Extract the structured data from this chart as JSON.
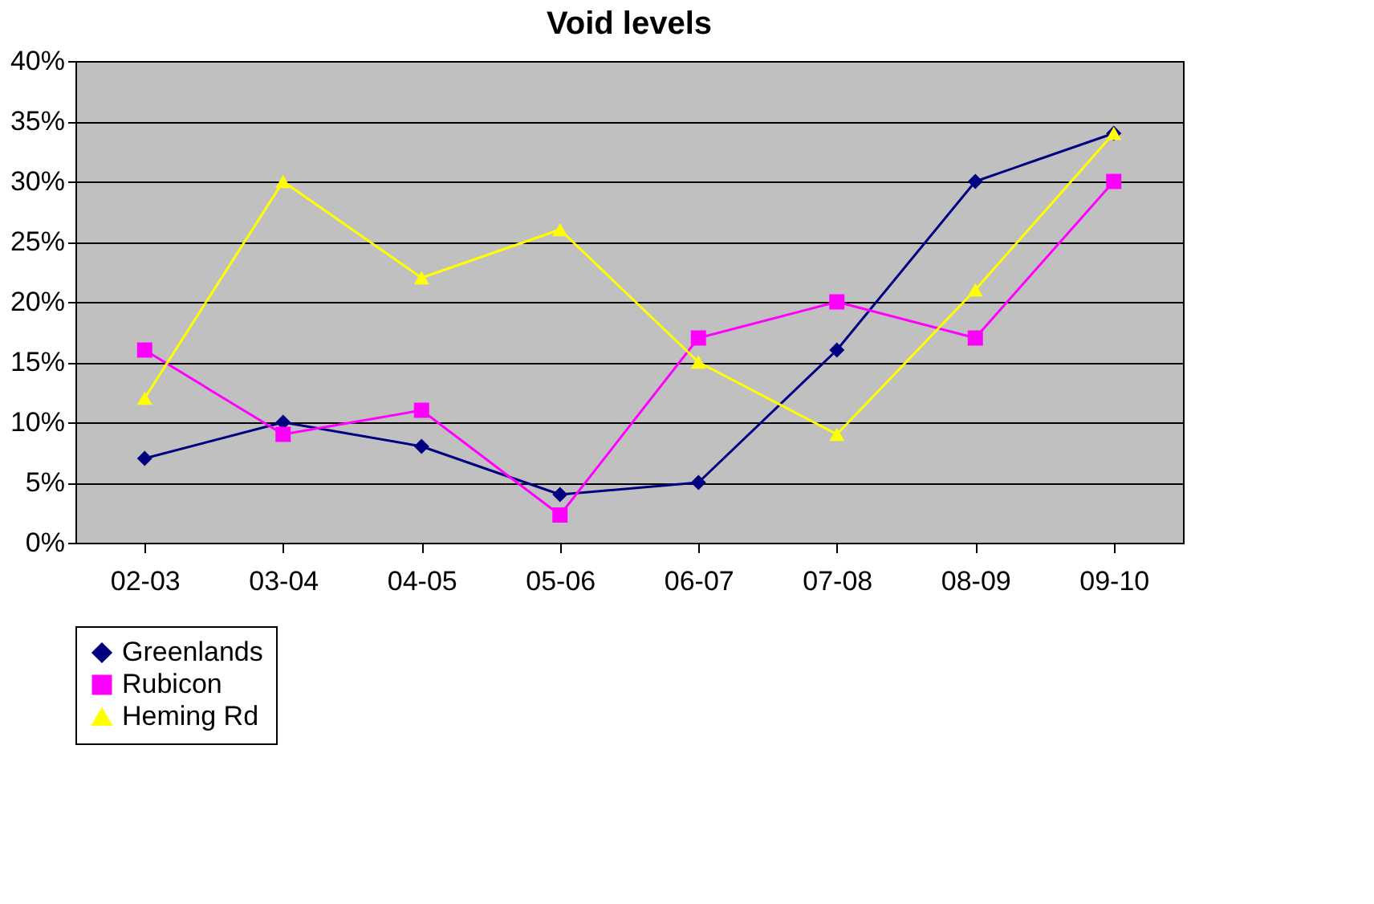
{
  "chart_data": {
    "type": "line",
    "title": "Void levels",
    "categories": [
      "02-03",
      "03-04",
      "04-05",
      "05-06",
      "06-07",
      "07-08",
      "08-09",
      "09-10"
    ],
    "series": [
      {
        "name": "Greenlands",
        "color": "#000080",
        "marker": "diamond",
        "values": [
          7,
          10,
          8,
          4,
          5,
          16,
          30,
          34
        ]
      },
      {
        "name": "Rubicon",
        "color": "#ff00ff",
        "marker": "square",
        "values": [
          16,
          9,
          11,
          2.3,
          17,
          20,
          17,
          30
        ]
      },
      {
        "name": "Heming Rd",
        "color": "#ffff00",
        "marker": "triangle",
        "values": [
          12,
          30,
          22,
          26,
          15,
          9,
          21,
          34
        ]
      }
    ],
    "ylim": [
      0,
      40
    ],
    "yticks": [
      {
        "value": 0,
        "label": "0%"
      },
      {
        "value": 5,
        "label": "5%"
      },
      {
        "value": 10,
        "label": "10%"
      },
      {
        "value": 15,
        "label": "15%"
      },
      {
        "value": 20,
        "label": "20%"
      },
      {
        "value": 25,
        "label": "25%"
      },
      {
        "value": 30,
        "label": "30%"
      },
      {
        "value": 35,
        "label": "35%"
      },
      {
        "value": 40,
        "label": "40%"
      }
    ],
    "grid": "y",
    "legend": "bottom",
    "line_style": "solid"
  }
}
